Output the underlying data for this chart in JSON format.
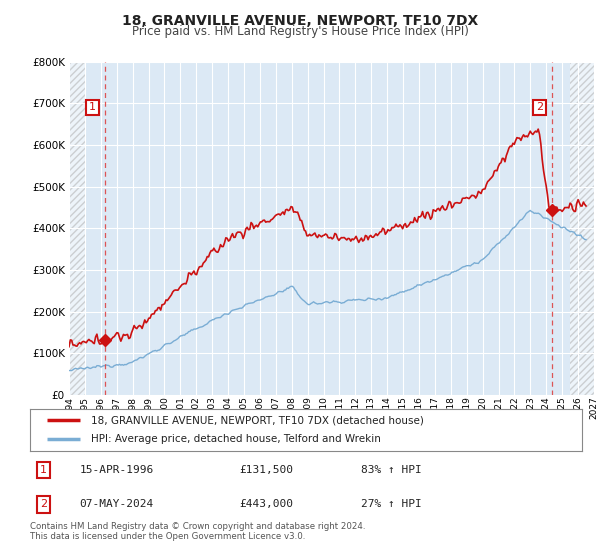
{
  "title": "18, GRANVILLE AVENUE, NEWPORT, TF10 7DX",
  "subtitle": "Price paid vs. HM Land Registry's House Price Index (HPI)",
  "bg_color": "#dce9f5",
  "hpi_color": "#7aadd4",
  "price_color": "#cc1111",
  "marker1_date": 1996.29,
  "marker1_value": 131500,
  "marker2_date": 2024.37,
  "marker2_value": 443000,
  "xmin": 1994.0,
  "xmax": 2027.0,
  "ymin": 0,
  "ymax": 800000,
  "hatch_left_end": 1995.0,
  "hatch_right_start": 2025.5,
  "legend_line1": "18, GRANVILLE AVENUE, NEWPORT, TF10 7DX (detached house)",
  "legend_line2": "HPI: Average price, detached house, Telford and Wrekin",
  "table_row1_num": "1",
  "table_row1_date": "15-APR-1996",
  "table_row1_price": "£131,500",
  "table_row1_hpi": "83% ↑ HPI",
  "table_row2_num": "2",
  "table_row2_date": "07-MAY-2024",
  "table_row2_price": "£443,000",
  "table_row2_hpi": "27% ↑ HPI",
  "footer": "Contains HM Land Registry data © Crown copyright and database right 2024.\nThis data is licensed under the Open Government Licence v3.0.",
  "vline_color": "#dd4444",
  "num_box_color": "#cc1111"
}
